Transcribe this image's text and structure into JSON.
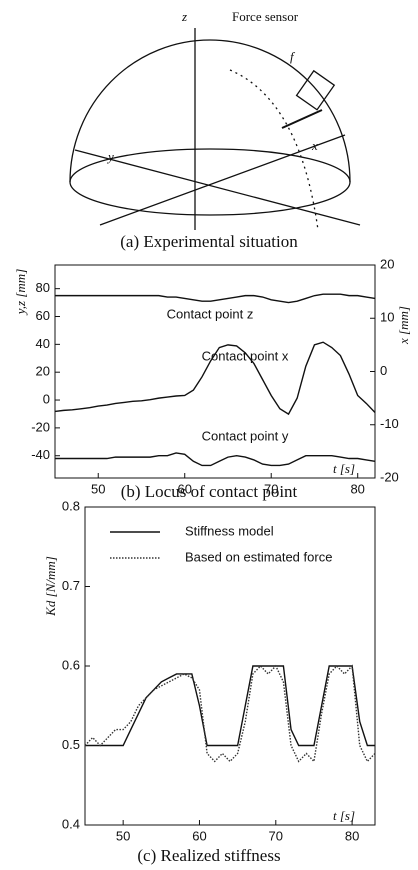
{
  "diagram": {
    "labels": {
      "z": "z",
      "sensor": "Force sensor",
      "f": "f",
      "x": "x",
      "y": "y"
    },
    "caption": "(a) Experimental situation"
  },
  "chart_data": [
    {
      "type": "line",
      "title": "(b) Locus of contact point",
      "xlabel": "t [s]",
      "ylabel": "y,z [mm]",
      "y2label": "x [mm]",
      "x": [
        45,
        46,
        47,
        48,
        49,
        50,
        51,
        52,
        53,
        54,
        55,
        56,
        57,
        58,
        59,
        60,
        61,
        62,
        63,
        64,
        65,
        66,
        67,
        68,
        69,
        70,
        71,
        72,
        73,
        74,
        75,
        76,
        77,
        78,
        79,
        80,
        81,
        82
      ],
      "series": [
        {
          "name": "Contact point z",
          "color": "#111111",
          "values": [
            75,
            75,
            75,
            75,
            75,
            75,
            75,
            75,
            75,
            75,
            75,
            75,
            75,
            74,
            74,
            73,
            72,
            71,
            71,
            72,
            73,
            74,
            75,
            75,
            74,
            72,
            71,
            70,
            71,
            73,
            75,
            76,
            76,
            76,
            75,
            75,
            74,
            73
          ]
        },
        {
          "name": "Contact point x",
          "color": "#111111",
          "axis": "y2",
          "values": [
            -7.5,
            -7.3,
            -7.2,
            -7,
            -6.8,
            -6.5,
            -6.3,
            -6,
            -5.8,
            -5.6,
            -5.5,
            -5.3,
            -5,
            -4.8,
            -4.6,
            -4.5,
            -3.5,
            -1,
            2,
            4.5,
            5,
            4.8,
            3.5,
            1.5,
            -1.5,
            -4.5,
            -7,
            -8,
            -5,
            1,
            5,
            5.5,
            4.5,
            3,
            -0.5,
            -4.5,
            -6,
            -7.7
          ]
        },
        {
          "name": "Contact point y",
          "color": "#111111",
          "values": [
            -42,
            -42,
            -42,
            -42,
            -42,
            -42,
            -42,
            -41,
            -41,
            -41,
            -41,
            -41,
            -40,
            -40,
            -38,
            -39,
            -44,
            -47,
            -47,
            -44,
            -41,
            -40,
            -41,
            -43,
            -46,
            -47,
            -47,
            -46,
            -43,
            -40,
            -40,
            -40,
            -40,
            -41,
            -42,
            -42,
            -43,
            -44
          ]
        }
      ],
      "xlim": [
        45,
        82
      ],
      "xticks": [
        50,
        60,
        70,
        80
      ],
      "ylim": [
        -56,
        97
      ],
      "yticks": [
        -40,
        -20,
        0,
        20,
        40,
        60,
        80
      ],
      "y2lim": [
        -20,
        20
      ],
      "y2ticks": [
        -20,
        -10,
        0,
        10,
        20
      ]
    },
    {
      "type": "line",
      "title": "(c) Realized stiffness",
      "xlabel": "t [s]",
      "ylabel": "Kd [N/mm]",
      "legend": "upper left",
      "x": [
        45,
        46,
        47,
        48,
        49,
        50,
        51,
        52,
        53,
        54,
        55,
        56,
        57,
        58,
        59,
        60,
        61,
        62,
        63,
        64,
        65,
        66,
        67,
        68,
        69,
        70,
        71,
        72,
        73,
        74,
        75,
        76,
        77,
        78,
        79,
        80,
        81,
        82,
        83
      ],
      "series": [
        {
          "name": "Stiffness model",
          "color": "#111111",
          "dash": "solid",
          "values": [
            0.5,
            0.5,
            0.5,
            0.5,
            0.5,
            0.5,
            0.52,
            0.54,
            0.56,
            0.57,
            0.58,
            0.585,
            0.59,
            0.59,
            0.59,
            0.55,
            0.5,
            0.5,
            0.5,
            0.5,
            0.5,
            0.55,
            0.6,
            0.6,
            0.6,
            0.6,
            0.6,
            0.52,
            0.5,
            0.5,
            0.5,
            0.55,
            0.6,
            0.6,
            0.6,
            0.6,
            0.53,
            0.5,
            0.5
          ]
        },
        {
          "name": "Based on estimated force",
          "color": "#333333",
          "dash": "dotted",
          "values": [
            0.5,
            0.51,
            0.5,
            0.51,
            0.52,
            0.52,
            0.53,
            0.55,
            0.56,
            0.57,
            0.575,
            0.58,
            0.585,
            0.59,
            0.585,
            0.57,
            0.49,
            0.48,
            0.49,
            0.48,
            0.49,
            0.53,
            0.59,
            0.6,
            0.59,
            0.6,
            0.58,
            0.5,
            0.48,
            0.49,
            0.48,
            0.54,
            0.59,
            0.6,
            0.59,
            0.6,
            0.5,
            0.48,
            0.49
          ]
        }
      ],
      "xlim": [
        45,
        83
      ],
      "xticks": [
        50,
        60,
        70,
        80
      ],
      "ylim": [
        0.4,
        0.8
      ],
      "yticks": [
        0.4,
        0.5,
        0.6,
        0.7,
        0.8
      ]
    }
  ]
}
